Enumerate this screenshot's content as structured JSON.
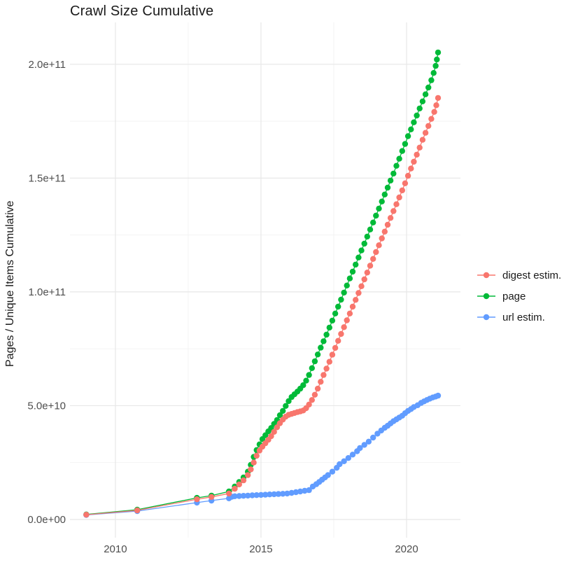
{
  "chart": {
    "title": "Crawl Size Cumulative",
    "ylabel": "Pages / Unique Items Cumulative",
    "xlabel": ""
  },
  "legend": {
    "items": [
      {
        "label": "digest estim.",
        "color": "#F8766D"
      },
      {
        "label": "page",
        "color": "#00BA38"
      },
      {
        "label": "url estim.",
        "color": "#619CFF"
      }
    ]
  },
  "chart_data": {
    "type": "line",
    "title": "Crawl Size Cumulative",
    "xlabel": "",
    "ylabel": "Pages / Unique Items Cumulative",
    "grid": true,
    "legend_position": "right",
    "background": "#ffffff",
    "major_grid_color": "#e7e7e7",
    "minor_grid_color": "#f2f2f2",
    "x_domain": [
      2008.44,
      2021.85
    ],
    "y_domain": [
      -8000000000,
      218400000000
    ],
    "x_ticks": {
      "values": [
        2010,
        2015,
        2020
      ],
      "labels": [
        "2010",
        "2015",
        "2020"
      ]
    },
    "x_minor": [
      2012.5,
      2017.5
    ],
    "y_ticks": {
      "values": [
        0,
        50000000000,
        100000000000,
        150000000000,
        200000000000
      ],
      "labels": [
        "0.0e+00",
        "5.0e+10",
        "1.0e+11",
        "1.5e+11",
        "2.0e+11"
      ]
    },
    "y_minor": [
      25000000000,
      75000000000,
      125000000000,
      175000000000
    ],
    "unit": 1000000000,
    "series": [
      {
        "name": "digest estim.",
        "color": "#F8766D",
        "points": [
          [
            2009.0,
            2.1
          ],
          [
            2010.75,
            4.0
          ],
          [
            2012.8,
            8.9
          ],
          [
            2013.3,
            9.9
          ],
          [
            2013.9,
            11.4
          ],
          [
            2014.1,
            13.5
          ],
          [
            2014.25,
            15.4
          ],
          [
            2014.4,
            17.2
          ],
          [
            2014.55,
            19.5
          ],
          [
            2014.65,
            22.0
          ],
          [
            2014.75,
            25.0
          ],
          [
            2014.85,
            28.0
          ],
          [
            2014.95,
            30.3
          ],
          [
            2015.05,
            32.0
          ],
          [
            2015.15,
            33.5
          ],
          [
            2015.25,
            35.0
          ],
          [
            2015.35,
            36.6
          ],
          [
            2015.45,
            38.5
          ],
          [
            2015.55,
            40.5
          ],
          [
            2015.65,
            42.3
          ],
          [
            2015.75,
            43.9
          ],
          [
            2015.85,
            45.2
          ],
          [
            2015.95,
            46.0
          ],
          [
            2016.05,
            46.4
          ],
          [
            2016.15,
            46.8
          ],
          [
            2016.25,
            47.2
          ],
          [
            2016.35,
            47.5
          ],
          [
            2016.45,
            47.9
          ],
          [
            2016.55,
            48.9
          ],
          [
            2016.65,
            50.5
          ],
          [
            2016.75,
            52.5
          ],
          [
            2016.85,
            54.8
          ],
          [
            2016.95,
            57.5
          ],
          [
            2017.05,
            60.5
          ],
          [
            2017.15,
            63.5
          ],
          [
            2017.25,
            66.3
          ],
          [
            2017.35,
            69.3
          ],
          [
            2017.45,
            72.4
          ],
          [
            2017.55,
            75.4
          ],
          [
            2017.65,
            78.5
          ],
          [
            2017.75,
            81.5
          ],
          [
            2017.85,
            84.5
          ],
          [
            2017.95,
            87.5
          ],
          [
            2018.05,
            90.5
          ],
          [
            2018.15,
            93.5
          ],
          [
            2018.25,
            96.5
          ],
          [
            2018.35,
            99.5
          ],
          [
            2018.45,
            102.5
          ],
          [
            2018.55,
            105.5
          ],
          [
            2018.65,
            108.5
          ],
          [
            2018.75,
            111.5
          ],
          [
            2018.85,
            114.5
          ],
          [
            2018.95,
            117.5
          ],
          [
            2019.05,
            120.5
          ],
          [
            2019.15,
            123.5
          ],
          [
            2019.25,
            126.5
          ],
          [
            2019.35,
            129.5
          ],
          [
            2019.45,
            132.5
          ],
          [
            2019.55,
            135.5
          ],
          [
            2019.65,
            138.5
          ],
          [
            2019.75,
            141.5
          ],
          [
            2019.85,
            144.6
          ],
          [
            2019.95,
            147.7
          ],
          [
            2020.05,
            151.0
          ],
          [
            2020.15,
            154.2
          ],
          [
            2020.25,
            157.2
          ],
          [
            2020.35,
            160.3
          ],
          [
            2020.45,
            163.4
          ],
          [
            2020.55,
            166.8
          ],
          [
            2020.65,
            169.9
          ],
          [
            2020.75,
            172.9
          ],
          [
            2020.85,
            176.0
          ],
          [
            2020.95,
            179.1
          ],
          [
            2021.02,
            182.0
          ],
          [
            2021.08,
            185.2
          ]
        ]
      },
      {
        "name": "page",
        "color": "#00BA38",
        "points": [
          [
            2009.0,
            2.2
          ],
          [
            2010.75,
            4.3
          ],
          [
            2012.8,
            9.5
          ],
          [
            2013.3,
            10.5
          ],
          [
            2013.9,
            12.3
          ],
          [
            2014.1,
            14.5
          ],
          [
            2014.25,
            16.5
          ],
          [
            2014.4,
            18.5
          ],
          [
            2014.55,
            21.0
          ],
          [
            2014.65,
            24.0
          ],
          [
            2014.75,
            27.5
          ],
          [
            2014.85,
            30.5
          ],
          [
            2014.95,
            33.0
          ],
          [
            2015.05,
            35.3
          ],
          [
            2015.15,
            37.0
          ],
          [
            2015.25,
            38.7
          ],
          [
            2015.35,
            40.2
          ],
          [
            2015.45,
            42.0
          ],
          [
            2015.55,
            43.7
          ],
          [
            2015.65,
            45.8
          ],
          [
            2015.75,
            47.7
          ],
          [
            2015.85,
            49.9
          ],
          [
            2015.95,
            52.0
          ],
          [
            2016.05,
            53.8
          ],
          [
            2016.15,
            55.0
          ],
          [
            2016.25,
            56.2
          ],
          [
            2016.35,
            57.5
          ],
          [
            2016.45,
            59.0
          ],
          [
            2016.55,
            61.0
          ],
          [
            2016.65,
            63.5
          ],
          [
            2016.75,
            66.5
          ],
          [
            2016.85,
            69.5
          ],
          [
            2016.95,
            72.5
          ],
          [
            2017.05,
            75.5
          ],
          [
            2017.15,
            78.3
          ],
          [
            2017.25,
            81.2
          ],
          [
            2017.35,
            84.3
          ],
          [
            2017.45,
            87.4
          ],
          [
            2017.55,
            90.5
          ],
          [
            2017.65,
            93.5
          ],
          [
            2017.75,
            96.6
          ],
          [
            2017.85,
            99.7
          ],
          [
            2017.95,
            102.8
          ],
          [
            2018.05,
            105.9
          ],
          [
            2018.15,
            108.9
          ],
          [
            2018.25,
            112.0
          ],
          [
            2018.35,
            115.1
          ],
          [
            2018.45,
            118.2
          ],
          [
            2018.55,
            121.2
          ],
          [
            2018.65,
            124.3
          ],
          [
            2018.75,
            127.4
          ],
          [
            2018.85,
            130.5
          ],
          [
            2018.95,
            133.5
          ],
          [
            2019.05,
            136.6
          ],
          [
            2019.15,
            139.7
          ],
          [
            2019.25,
            142.8
          ],
          [
            2019.35,
            145.8
          ],
          [
            2019.45,
            148.9
          ],
          [
            2019.55,
            152.0
          ],
          [
            2019.65,
            155.4
          ],
          [
            2019.75,
            158.5
          ],
          [
            2019.85,
            161.9
          ],
          [
            2019.95,
            165.0
          ],
          [
            2020.05,
            168.4
          ],
          [
            2020.15,
            171.4
          ],
          [
            2020.25,
            174.5
          ],
          [
            2020.35,
            177.5
          ],
          [
            2020.45,
            180.6
          ],
          [
            2020.55,
            183.7
          ],
          [
            2020.65,
            186.8
          ],
          [
            2020.75,
            189.8
          ],
          [
            2020.85,
            193.0
          ],
          [
            2020.93,
            196.2
          ],
          [
            2021.0,
            199.3
          ],
          [
            2021.04,
            202.1
          ],
          [
            2021.08,
            205.2
          ]
        ]
      },
      {
        "name": "url estim.",
        "color": "#619CFF",
        "points": [
          [
            2009.0,
            2.0
          ],
          [
            2010.75,
            3.7
          ],
          [
            2012.8,
            7.4
          ],
          [
            2013.3,
            8.3
          ],
          [
            2013.9,
            9.3
          ],
          [
            2014.0,
            10.0
          ],
          [
            2014.1,
            10.2
          ],
          [
            2014.25,
            10.3
          ],
          [
            2014.4,
            10.4
          ],
          [
            2014.55,
            10.5
          ],
          [
            2014.7,
            10.6
          ],
          [
            2014.85,
            10.7
          ],
          [
            2015.0,
            10.8
          ],
          [
            2015.15,
            10.9
          ],
          [
            2015.3,
            11.0
          ],
          [
            2015.45,
            11.1
          ],
          [
            2015.6,
            11.2
          ],
          [
            2015.75,
            11.3
          ],
          [
            2015.9,
            11.4
          ],
          [
            2016.05,
            11.7
          ],
          [
            2016.2,
            12.0
          ],
          [
            2016.35,
            12.3
          ],
          [
            2016.5,
            12.6
          ],
          [
            2016.65,
            12.9
          ],
          [
            2016.78,
            14.5
          ],
          [
            2016.9,
            15.5
          ],
          [
            2017.0,
            16.5
          ],
          [
            2017.1,
            17.5
          ],
          [
            2017.2,
            18.5
          ],
          [
            2017.3,
            19.5
          ],
          [
            2017.45,
            21.0
          ],
          [
            2017.6,
            22.7
          ],
          [
            2017.7,
            24.3
          ],
          [
            2017.85,
            25.6
          ],
          [
            2018.0,
            27.0
          ],
          [
            2018.15,
            28.5
          ],
          [
            2018.3,
            30.0
          ],
          [
            2018.4,
            31.4
          ],
          [
            2018.55,
            32.8
          ],
          [
            2018.7,
            34.2
          ],
          [
            2018.85,
            36.0
          ],
          [
            2019.0,
            37.7
          ],
          [
            2019.13,
            39.1
          ],
          [
            2019.25,
            40.3
          ],
          [
            2019.35,
            41.2
          ],
          [
            2019.45,
            42.2
          ],
          [
            2019.55,
            43.2
          ],
          [
            2019.65,
            44.0
          ],
          [
            2019.75,
            44.8
          ],
          [
            2019.85,
            45.6
          ],
          [
            2019.95,
            46.7
          ],
          [
            2020.05,
            47.7
          ],
          [
            2020.15,
            48.5
          ],
          [
            2020.25,
            49.4
          ],
          [
            2020.38,
            50.2
          ],
          [
            2020.5,
            51.2
          ],
          [
            2020.6,
            51.9
          ],
          [
            2020.7,
            52.5
          ],
          [
            2020.8,
            53.1
          ],
          [
            2020.9,
            53.6
          ],
          [
            2021.0,
            54.0
          ],
          [
            2021.08,
            54.4
          ]
        ]
      }
    ]
  }
}
